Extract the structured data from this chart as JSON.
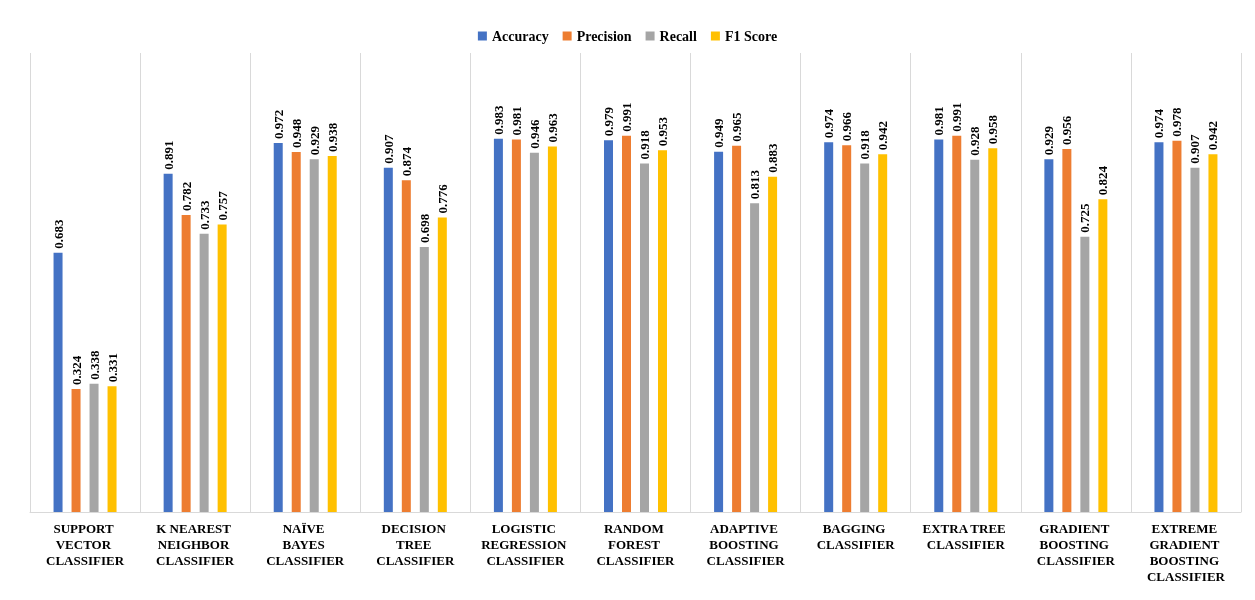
{
  "chart_data": {
    "type": "bar",
    "categories": [
      "SUPPORT VECTOR CLASSIFIER",
      "K NEAREST NEIGHBOR CLASSIFIER",
      "NAÏVE BAYES CLASSIFIER",
      "DECISION TREE CLASSIFIER",
      "LOGISTIC REGRESSION CLASSIFIER",
      "RANDOM FOREST CLASSIFIER",
      "ADAPTIVE BOOSTING CLASSIFIER",
      "BAGGING CLASSIFIER",
      "EXTRA TREE CLASSIFIER",
      "GRADIENT BOOSTING CLASSIFIER",
      "EXTREME GRADIENT BOOSTING CLASSIFIER"
    ],
    "series": [
      {
        "name": "Accuracy",
        "color": "#4472c4",
        "values": [
          0.683,
          0.891,
          0.972,
          0.907,
          0.983,
          0.979,
          0.949,
          0.974,
          0.981,
          0.929,
          0.974
        ]
      },
      {
        "name": "Precision",
        "color": "#ed7d31",
        "values": [
          0.324,
          0.782,
          0.948,
          0.874,
          0.981,
          0.991,
          0.965,
          0.966,
          0.991,
          0.956,
          0.978
        ]
      },
      {
        "name": "Recall",
        "color": "#a5a5a5",
        "values": [
          0.338,
          0.733,
          0.929,
          0.698,
          0.946,
          0.918,
          0.813,
          0.918,
          0.928,
          0.725,
          0.907
        ]
      },
      {
        "name": "F1 Score",
        "color": "#ffc000",
        "values": [
          0.331,
          0.757,
          0.938,
          0.776,
          0.963,
          0.953,
          0.883,
          0.942,
          0.958,
          0.824,
          0.942
        ]
      }
    ],
    "data_labels": true,
    "grid": "x",
    "legend": "top",
    "tick_labels": "x"
  }
}
